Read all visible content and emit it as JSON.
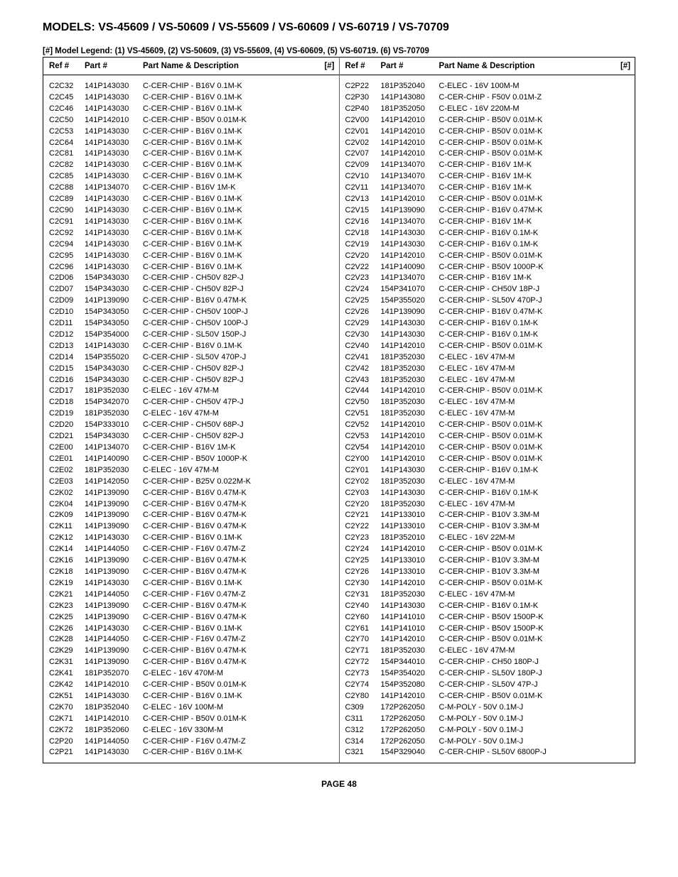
{
  "title": "MODELS: VS-45609 / VS-50609 / VS-55609 / VS-60609 / VS-60719 / VS-70709",
  "legend": "[#] Model Legend: (1) VS-45609, (2) VS-50609, (3) VS-55609, (4) VS-60609, (5) VS-60719. (6) VS-70709",
  "headers": {
    "ref": "Ref #",
    "part": "Part #",
    "desc": "Part Name & Description",
    "hash": "[#]"
  },
  "footer": "PAGE 48",
  "left": [
    {
      "ref": "C2C32",
      "part": "141P143030",
      "desc": "C-CER-CHIP - B16V 0.1M-K"
    },
    {
      "ref": "C2C45",
      "part": "141P143030",
      "desc": "C-CER-CHIP - B16V 0.1M-K"
    },
    {
      "ref": "C2C46",
      "part": "141P143030",
      "desc": "C-CER-CHIP - B16V 0.1M-K"
    },
    {
      "ref": "C2C50",
      "part": "141P142010",
      "desc": "C-CER-CHIP - B50V 0.01M-K"
    },
    {
      "ref": "C2C53",
      "part": "141P143030",
      "desc": "C-CER-CHIP - B16V 0.1M-K"
    },
    {
      "ref": "C2C64",
      "part": "141P143030",
      "desc": "C-CER-CHIP - B16V 0.1M-K"
    },
    {
      "ref": "C2C81",
      "part": "141P143030",
      "desc": "C-CER-CHIP - B16V 0.1M-K"
    },
    {
      "ref": "C2C82",
      "part": "141P143030",
      "desc": "C-CER-CHIP - B16V 0.1M-K"
    },
    {
      "ref": "C2C85",
      "part": "141P143030",
      "desc": "C-CER-CHIP - B16V 0.1M-K"
    },
    {
      "ref": "C2C88",
      "part": "141P134070",
      "desc": "C-CER-CHIP - B16V 1M-K"
    },
    {
      "ref": "C2C89",
      "part": "141P143030",
      "desc": "C-CER-CHIP - B16V 0.1M-K"
    },
    {
      "ref": "C2C90",
      "part": "141P143030",
      "desc": "C-CER-CHIP - B16V 0.1M-K"
    },
    {
      "ref": "C2C91",
      "part": "141P143030",
      "desc": "C-CER-CHIP - B16V 0.1M-K"
    },
    {
      "ref": "C2C92",
      "part": "141P143030",
      "desc": "C-CER-CHIP - B16V 0.1M-K"
    },
    {
      "ref": "C2C94",
      "part": "141P143030",
      "desc": "C-CER-CHIP - B16V 0.1M-K"
    },
    {
      "ref": "C2C95",
      "part": "141P143030",
      "desc": "C-CER-CHIP - B16V 0.1M-K"
    },
    {
      "ref": "C2C96",
      "part": "141P143030",
      "desc": "C-CER-CHIP - B16V 0.1M-K"
    },
    {
      "ref": "C2D06",
      "part": "154P343030",
      "desc": "C-CER-CHIP - CH50V 82P-J"
    },
    {
      "ref": "C2D07",
      "part": "154P343030",
      "desc": "C-CER-CHIP - CH50V 82P-J"
    },
    {
      "ref": "C2D09",
      "part": "141P139090",
      "desc": "C-CER-CHIP - B16V 0.47M-K"
    },
    {
      "ref": "C2D10",
      "part": "154P343050",
      "desc": "C-CER-CHIP - CH50V 100P-J"
    },
    {
      "ref": "C2D11",
      "part": "154P343050",
      "desc": "C-CER-CHIP - CH50V 100P-J"
    },
    {
      "ref": "C2D12",
      "part": "154P354000",
      "desc": "C-CER-CHIP - SL50V 150P-J"
    },
    {
      "ref": "C2D13",
      "part": "141P143030",
      "desc": "C-CER-CHIP - B16V 0.1M-K"
    },
    {
      "ref": "C2D14",
      "part": "154P355020",
      "desc": "C-CER-CHIP - SL50V 470P-J"
    },
    {
      "ref": "C2D15",
      "part": "154P343030",
      "desc": "C-CER-CHIP - CH50V 82P-J"
    },
    {
      "ref": "C2D16",
      "part": "154P343030",
      "desc": "C-CER-CHIP - CH50V 82P-J"
    },
    {
      "ref": "C2D17",
      "part": "181P352030",
      "desc": "C-ELEC - 16V 47M-M"
    },
    {
      "ref": "C2D18",
      "part": "154P342070",
      "desc": "C-CER-CHIP - CH50V 47P-J"
    },
    {
      "ref": "C2D19",
      "part": "181P352030",
      "desc": "C-ELEC - 16V 47M-M"
    },
    {
      "ref": "C2D20",
      "part": "154P333010",
      "desc": "C-CER-CHIP - CH50V 68P-J"
    },
    {
      "ref": "C2D21",
      "part": "154P343030",
      "desc": "C-CER-CHIP - CH50V 82P-J"
    },
    {
      "ref": "C2E00",
      "part": "141P134070",
      "desc": "C-CER-CHIP - B16V 1M-K"
    },
    {
      "ref": "C2E01",
      "part": "141P140090",
      "desc": "C-CER-CHIP - B50V 1000P-K"
    },
    {
      "ref": "C2E02",
      "part": "181P352030",
      "desc": "C-ELEC - 16V 47M-M"
    },
    {
      "ref": "C2E03",
      "part": "141P142050",
      "desc": "C-CER-CHIP - B25V 0.022M-K"
    },
    {
      "ref": "C2K02",
      "part": "141P139090",
      "desc": "C-CER-CHIP - B16V 0.47M-K"
    },
    {
      "ref": "C2K04",
      "part": "141P139090",
      "desc": "C-CER-CHIP - B16V 0.47M-K"
    },
    {
      "ref": "C2K09",
      "part": "141P139090",
      "desc": "C-CER-CHIP - B16V 0.47M-K"
    },
    {
      "ref": "C2K11",
      "part": "141P139090",
      "desc": "C-CER-CHIP - B16V 0.47M-K"
    },
    {
      "ref": "C2K12",
      "part": "141P143030",
      "desc": "C-CER-CHIP - B16V 0.1M-K"
    },
    {
      "ref": "C2K14",
      "part": "141P144050",
      "desc": "C-CER-CHIP - F16V 0.47M-Z"
    },
    {
      "ref": "C2K16",
      "part": "141P139090",
      "desc": "C-CER-CHIP - B16V 0.47M-K"
    },
    {
      "ref": "C2K18",
      "part": "141P139090",
      "desc": "C-CER-CHIP - B16V 0.47M-K"
    },
    {
      "ref": "C2K19",
      "part": "141P143030",
      "desc": "C-CER-CHIP - B16V 0.1M-K"
    },
    {
      "ref": "C2K21",
      "part": "141P144050",
      "desc": "C-CER-CHIP - F16V 0.47M-Z"
    },
    {
      "ref": "C2K23",
      "part": "141P139090",
      "desc": "C-CER-CHIP - B16V 0.47M-K"
    },
    {
      "ref": "C2K25",
      "part": "141P139090",
      "desc": "C-CER-CHIP - B16V 0.47M-K"
    },
    {
      "ref": "C2K26",
      "part": "141P143030",
      "desc": "C-CER-CHIP - B16V 0.1M-K"
    },
    {
      "ref": "C2K28",
      "part": "141P144050",
      "desc": "C-CER-CHIP - F16V 0.47M-Z"
    },
    {
      "ref": "C2K29",
      "part": "141P139090",
      "desc": "C-CER-CHIP - B16V 0.47M-K"
    },
    {
      "ref": "C2K31",
      "part": "141P139090",
      "desc": "C-CER-CHIP - B16V 0.47M-K"
    },
    {
      "ref": "C2K41",
      "part": "181P352070",
      "desc": "C-ELEC - 16V 470M-M"
    },
    {
      "ref": "C2K42",
      "part": "141P142010",
      "desc": "C-CER-CHIP - B50V 0.01M-K"
    },
    {
      "ref": "C2K51",
      "part": "141P143030",
      "desc": "C-CER-CHIP - B16V 0.1M-K"
    },
    {
      "ref": "C2K70",
      "part": "181P352040",
      "desc": "C-ELEC - 16V 100M-M"
    },
    {
      "ref": "C2K71",
      "part": "141P142010",
      "desc": "C-CER-CHIP - B50V 0.01M-K"
    },
    {
      "ref": "C2K72",
      "part": "181P352060",
      "desc": "C-ELEC - 16V 330M-M"
    },
    {
      "ref": "C2P20",
      "part": "141P144050",
      "desc": "C-CER-CHIP - F16V 0.47M-Z"
    },
    {
      "ref": "C2P21",
      "part": "141P143030",
      "desc": "C-CER-CHIP - B16V 0.1M-K"
    }
  ],
  "right": [
    {
      "ref": "C2P22",
      "part": "181P352040",
      "desc": "C-ELEC - 16V 100M-M"
    },
    {
      "ref": "C2P30",
      "part": "141P143080",
      "desc": "C-CER-CHIP - F50V 0.01M-Z"
    },
    {
      "ref": "C2P40",
      "part": "181P352050",
      "desc": "C-ELEC - 16V 220M-M"
    },
    {
      "ref": "C2V00",
      "part": "141P142010",
      "desc": "C-CER-CHIP - B50V 0.01M-K"
    },
    {
      "ref": "C2V01",
      "part": "141P142010",
      "desc": "C-CER-CHIP - B50V 0.01M-K"
    },
    {
      "ref": "C2V02",
      "part": "141P142010",
      "desc": "C-CER-CHIP - B50V 0.01M-K"
    },
    {
      "ref": "C2V07",
      "part": "141P142010",
      "desc": "C-CER-CHIP - B50V 0.01M-K"
    },
    {
      "ref": "C2V09",
      "part": "141P134070",
      "desc": "C-CER-CHIP - B16V 1M-K"
    },
    {
      "ref": "C2V10",
      "part": "141P134070",
      "desc": "C-CER-CHIP - B16V 1M-K"
    },
    {
      "ref": "C2V11",
      "part": "141P134070",
      "desc": "C-CER-CHIP - B16V 1M-K"
    },
    {
      "ref": "C2V13",
      "part": "141P142010",
      "desc": "C-CER-CHIP - B50V 0.01M-K"
    },
    {
      "ref": "C2V15",
      "part": "141P139090",
      "desc": "C-CER-CHIP - B16V 0.47M-K"
    },
    {
      "ref": "C2V16",
      "part": "141P134070",
      "desc": "C-CER-CHIP - B16V 1M-K"
    },
    {
      "ref": "C2V18",
      "part": "141P143030",
      "desc": "C-CER-CHIP - B16V 0.1M-K"
    },
    {
      "ref": "C2V19",
      "part": "141P143030",
      "desc": "C-CER-CHIP - B16V 0.1M-K"
    },
    {
      "ref": "C2V20",
      "part": "141P142010",
      "desc": "C-CER-CHIP - B50V 0.01M-K"
    },
    {
      "ref": "C2V22",
      "part": "141P140090",
      "desc": "C-CER-CHIP - B50V 1000P-K"
    },
    {
      "ref": "C2V23",
      "part": "141P134070",
      "desc": "C-CER-CHIP - B16V 1M-K"
    },
    {
      "ref": "C2V24",
      "part": "154P341070",
      "desc": "C-CER-CHIP - CH50V 18P-J"
    },
    {
      "ref": "C2V25",
      "part": "154P355020",
      "desc": "C-CER-CHIP - SL50V 470P-J"
    },
    {
      "ref": "C2V26",
      "part": "141P139090",
      "desc": "C-CER-CHIP - B16V 0.47M-K"
    },
    {
      "ref": "C2V29",
      "part": "141P143030",
      "desc": "C-CER-CHIP - B16V 0.1M-K"
    },
    {
      "ref": "C2V30",
      "part": "141P143030",
      "desc": "C-CER-CHIP - B16V 0.1M-K"
    },
    {
      "ref": "C2V40",
      "part": "141P142010",
      "desc": "C-CER-CHIP - B50V 0.01M-K"
    },
    {
      "ref": "C2V41",
      "part": "181P352030",
      "desc": "C-ELEC - 16V 47M-M"
    },
    {
      "ref": "C2V42",
      "part": "181P352030",
      "desc": "C-ELEC - 16V 47M-M"
    },
    {
      "ref": "C2V43",
      "part": "181P352030",
      "desc": "C-ELEC - 16V 47M-M"
    },
    {
      "ref": "C2V44",
      "part": "141P142010",
      "desc": "C-CER-CHIP - B50V 0.01M-K"
    },
    {
      "ref": "C2V50",
      "part": "181P352030",
      "desc": "C-ELEC - 16V 47M-M"
    },
    {
      "ref": "C2V51",
      "part": "181P352030",
      "desc": "C-ELEC - 16V 47M-M"
    },
    {
      "ref": "C2V52",
      "part": "141P142010",
      "desc": "C-CER-CHIP - B50V 0.01M-K"
    },
    {
      "ref": "C2V53",
      "part": "141P142010",
      "desc": "C-CER-CHIP - B50V 0.01M-K"
    },
    {
      "ref": "C2V54",
      "part": "141P142010",
      "desc": "C-CER-CHIP - B50V 0.01M-K"
    },
    {
      "ref": "C2Y00",
      "part": "141P142010",
      "desc": "C-CER-CHIP - B50V 0.01M-K"
    },
    {
      "ref": "C2Y01",
      "part": "141P143030",
      "desc": "C-CER-CHIP - B16V 0.1M-K"
    },
    {
      "ref": "C2Y02",
      "part": "181P352030",
      "desc": "C-ELEC - 16V 47M-M"
    },
    {
      "ref": "C2Y03",
      "part": "141P143030",
      "desc": "C-CER-CHIP - B16V 0.1M-K"
    },
    {
      "ref": "C2Y20",
      "part": "181P352030",
      "desc": "C-ELEC - 16V 47M-M"
    },
    {
      "ref": "C2Y21",
      "part": "141P133010",
      "desc": "C-CER-CHIP - B10V 3.3M-M"
    },
    {
      "ref": "C2Y22",
      "part": "141P133010",
      "desc": "C-CER-CHIP - B10V 3.3M-M"
    },
    {
      "ref": "C2Y23",
      "part": "181P352010",
      "desc": "C-ELEC - 16V 22M-M"
    },
    {
      "ref": "C2Y24",
      "part": "141P142010",
      "desc": "C-CER-CHIP - B50V 0.01M-K"
    },
    {
      "ref": "C2Y25",
      "part": "141P133010",
      "desc": "C-CER-CHIP - B10V 3.3M-M"
    },
    {
      "ref": "C2Y26",
      "part": "141P133010",
      "desc": "C-CER-CHIP - B10V 3.3M-M"
    },
    {
      "ref": "C2Y30",
      "part": "141P142010",
      "desc": "C-CER-CHIP - B50V 0.01M-K"
    },
    {
      "ref": "C2Y31",
      "part": "181P352030",
      "desc": "C-ELEC - 16V 47M-M"
    },
    {
      "ref": "C2Y40",
      "part": "141P143030",
      "desc": "C-CER-CHIP - B16V 0.1M-K"
    },
    {
      "ref": "C2Y60",
      "part": "141P141010",
      "desc": "C-CER-CHIP - B50V 1500P-K"
    },
    {
      "ref": "C2Y61",
      "part": "141P141010",
      "desc": "C-CER-CHIP - B50V 1500P-K"
    },
    {
      "ref": "C2Y70",
      "part": "141P142010",
      "desc": "C-CER-CHIP - B50V 0.01M-K"
    },
    {
      "ref": "C2Y71",
      "part": "181P352030",
      "desc": "C-ELEC - 16V 47M-M"
    },
    {
      "ref": "C2Y72",
      "part": "154P344010",
      "desc": "C-CER-CHIP - CH50 180P-J"
    },
    {
      "ref": "C2Y73",
      "part": "154P354020",
      "desc": "C-CER-CHIP - SL50V 180P-J"
    },
    {
      "ref": "C2Y74",
      "part": "154P352080",
      "desc": "C-CER-CHIP - SL50V 47P-J"
    },
    {
      "ref": "C2Y80",
      "part": "141P142010",
      "desc": "C-CER-CHIP - B50V 0.01M-K"
    },
    {
      "ref": "C309",
      "part": "172P262050",
      "desc": "C-M-POLY - 50V 0.1M-J"
    },
    {
      "ref": "C311",
      "part": "172P262050",
      "desc": "C-M-POLY - 50V 0.1M-J"
    },
    {
      "ref": "C312",
      "part": "172P262050",
      "desc": "C-M-POLY - 50V 0.1M-J"
    },
    {
      "ref": "C314",
      "part": "172P262050",
      "desc": "C-M-POLY - 50V 0.1M-J"
    },
    {
      "ref": "C321",
      "part": "154P329040",
      "desc": "C-CER-CHIP - SL50V 6800P-J"
    }
  ]
}
